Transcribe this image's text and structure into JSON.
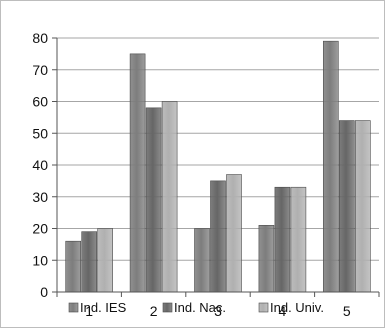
{
  "chart_data": {
    "type": "bar",
    "categories": [
      "1",
      "2",
      "3",
      "4",
      "5"
    ],
    "series": [
      {
        "name": "Ind. IES",
        "values": [
          16,
          75,
          20,
          21,
          79
        ],
        "color": "#7d7d7d"
      },
      {
        "name": "Ind. Nac.",
        "values": [
          19,
          58,
          35,
          33,
          54
        ],
        "color": "#666666"
      },
      {
        "name": "Ind. Univ.",
        "values": [
          20,
          60,
          37,
          33,
          54
        ],
        "color": "#b0b0b0"
      }
    ],
    "y_ticks": [
      "0",
      "10",
      "20",
      "30",
      "40",
      "50",
      "60",
      "70",
      "80"
    ],
    "ylim": [
      0,
      80
    ],
    "grid": true,
    "legend_position": "bottom"
  }
}
